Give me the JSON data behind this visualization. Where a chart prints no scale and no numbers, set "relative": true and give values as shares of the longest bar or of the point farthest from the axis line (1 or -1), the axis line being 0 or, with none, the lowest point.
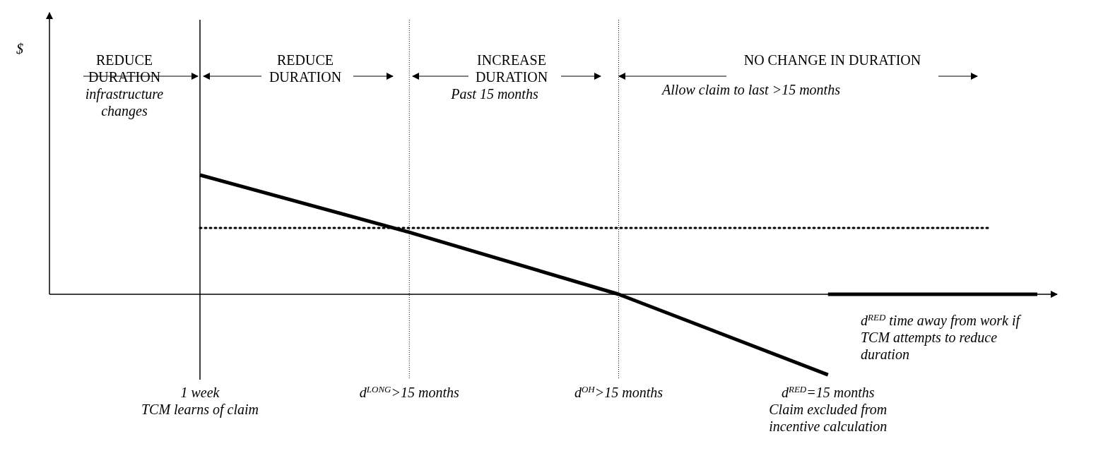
{
  "chart_data": {
    "type": "line",
    "relative": true,
    "categories": [
      "1 week\nTCM learns of claim",
      "d$^{LONG}$>15 months",
      "d$^{OH}$>15 months",
      "d$^{RED}$=15 months\nClaim excluded from\nincentive calculation",
      null
    ],
    "series": [
      {
        "color": "#000000",
        "values": [
          1,
          0.52,
          0,
          -0.675,
          null
        ]
      },
      {
        "color": "#000000",
        "values": [
          null,
          null,
          null,
          0,
          0
        ]
      }
    ],
    "ref_lines": [
      {
        "axis": "x",
        "value": "1 week\nTCM learns of claim",
        "line_style": "solid"
      },
      {
        "axis": "x",
        "value": "d$^{LONG}$>15 months",
        "line_style": "dotted"
      },
      {
        "axis": "x",
        "value": "d$^{OH}$>15 months",
        "line_style": "dotted"
      },
      {
        "axis": "y",
        "value": 0.556,
        "line_style": "dotted"
      }
    ],
    "annotations": [
      "$",
      "REDUCE\nDURATION",
      "infrastructure\nchanges",
      "REDUCE\nDURATION",
      "INCREASE\nDURATION",
      "Past 15 months",
      "NO CHANGE IN DURATION",
      "Allow claim to last >15 months",
      "d$^{RED}$ time away from work if\nTCM attempts to reduce\nduration"
    ],
    "line_style": "solid"
  }
}
